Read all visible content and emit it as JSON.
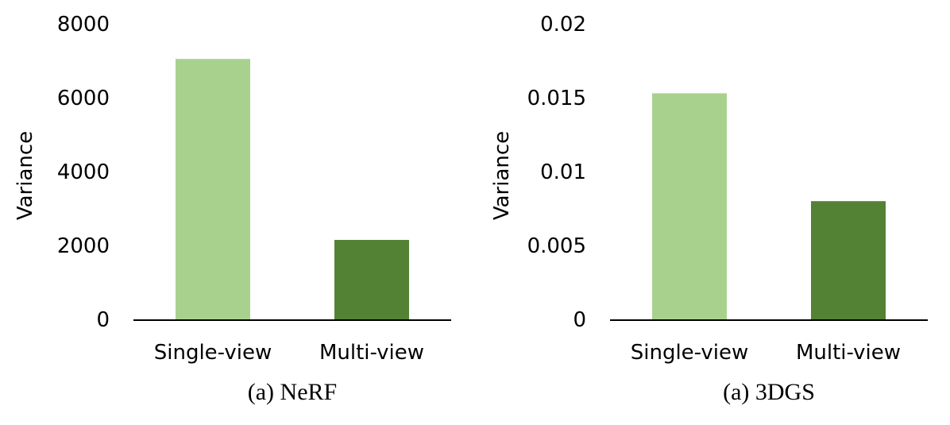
{
  "chart_data": [
    {
      "type": "bar",
      "categories": [
        "Single-view",
        "Multi-view"
      ],
      "values": [
        7050,
        2150
      ],
      "ylabel": "Variance",
      "xlabel": "",
      "caption": "(a) NeRF",
      "ylim": [
        0,
        8000
      ],
      "yticks": [
        "0",
        "2000",
        "4000",
        "6000",
        "8000"
      ],
      "ytick_values": [
        0,
        2000,
        4000,
        6000,
        8000
      ],
      "bar_colors": [
        "#a9d18e",
        "#548235"
      ],
      "grid": false
    },
    {
      "type": "bar",
      "categories": [
        "Single-view",
        "Multi-view"
      ],
      "values": [
        0.0153,
        0.008
      ],
      "ylabel": "Variance",
      "xlabel": "",
      "caption": "(a) 3DGS",
      "ylim": [
        0,
        0.02
      ],
      "yticks": [
        "0",
        "0.005",
        "0.01",
        "0.015",
        "0.02"
      ],
      "ytick_values": [
        0,
        0.005,
        0.01,
        0.015,
        0.02
      ],
      "bar_colors": [
        "#a9d18e",
        "#548235"
      ],
      "grid": false
    }
  ]
}
